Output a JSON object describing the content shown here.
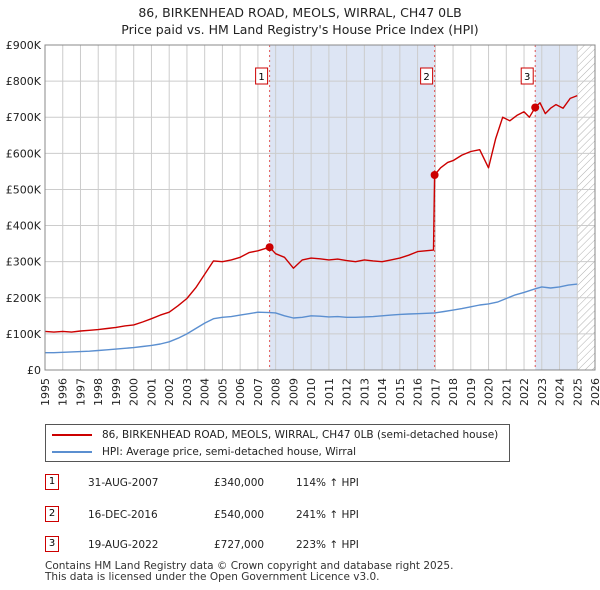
{
  "header": {
    "title_line1": "86, BIRKENHEAD ROAD, MEOLS, WIRRAL, CH47 0LB",
    "title_line2": "Price paid vs. HM Land Registry's House Price Index (HPI)"
  },
  "chart_data": {
    "type": "line",
    "title": "86, BIRKENHEAD ROAD, MEOLS, WIRRAL, CH47 0LB",
    "subtitle": "Price paid vs. HM Land Registry's House Price Index (HPI)",
    "xlabel": "",
    "ylabel": "",
    "xlim": [
      1995,
      2026
    ],
    "ylim": [
      0,
      900000
    ],
    "y_ticks": [
      {
        "value": 0,
        "label": "£0"
      },
      {
        "value": 100000,
        "label": "£100K"
      },
      {
        "value": 200000,
        "label": "£200K"
      },
      {
        "value": 300000,
        "label": "£300K"
      },
      {
        "value": 400000,
        "label": "£400K"
      },
      {
        "value": 500000,
        "label": "£500K"
      },
      {
        "value": 600000,
        "label": "£600K"
      },
      {
        "value": 700000,
        "label": "£700K"
      },
      {
        "value": 800000,
        "label": "£800K"
      },
      {
        "value": 900000,
        "label": "£900K"
      }
    ],
    "x_ticks": [
      "1995",
      "1996",
      "1997",
      "1998",
      "1999",
      "2000",
      "2001",
      "2002",
      "2003",
      "2004",
      "2005",
      "2006",
      "2007",
      "2008",
      "2009",
      "2010",
      "2011",
      "2012",
      "2013",
      "2014",
      "2015",
      "2016",
      "2017",
      "2018",
      "2019",
      "2020",
      "2021",
      "2022",
      "2023",
      "2024",
      "2025",
      "2026"
    ],
    "grid": true,
    "colors": {
      "property": "#cc0000",
      "hpi": "#5b8fd0",
      "shade": "#dde5f4",
      "vline": "#e05555",
      "grid": "#cccccc",
      "hatch": "#b0b0b0"
    },
    "shaded_periods": [
      [
        2007.66,
        2016.96
      ],
      [
        2022.63,
        2025.0
      ]
    ],
    "forecast_start": 2025.0,
    "series": [
      {
        "name": "86, BIRKENHEAD ROAD, MEOLS, WIRRAL, CH47 0LB (semi-detached house)",
        "color": "#cc0000",
        "x": [
          1995.0,
          1995.5,
          1996.0,
          1996.5,
          1997.0,
          1997.5,
          1998.0,
          1998.5,
          1999.0,
          1999.5,
          2000.0,
          2000.5,
          2001.0,
          2001.5,
          2002.0,
          2002.5,
          2003.0,
          2003.5,
          2004.0,
          2004.5,
          2005.0,
          2005.5,
          2006.0,
          2006.5,
          2007.0,
          2007.66,
          2008.0,
          2008.5,
          2009.0,
          2009.5,
          2010.0,
          2010.5,
          2011.0,
          2011.5,
          2012.0,
          2012.5,
          2013.0,
          2013.5,
          2014.0,
          2014.5,
          2015.0,
          2015.5,
          2016.0,
          2016.9,
          2016.96,
          2017.3,
          2017.7,
          2018.0,
          2018.5,
          2019.0,
          2019.5,
          2020.0,
          2020.4,
          2020.8,
          2021.2,
          2021.6,
          2022.0,
          2022.3,
          2022.63,
          2022.9,
          2023.2,
          2023.5,
          2023.8,
          2024.2,
          2024.6,
          2025.0
        ],
        "values": [
          107000,
          105000,
          107000,
          105000,
          108000,
          110000,
          112000,
          115000,
          118000,
          122000,
          125000,
          133000,
          142000,
          152000,
          160000,
          178000,
          198000,
          228000,
          265000,
          302000,
          300000,
          305000,
          312000,
          325000,
          330000,
          340000,
          322000,
          312000,
          282000,
          305000,
          310000,
          308000,
          305000,
          307000,
          303000,
          300000,
          305000,
          302000,
          300000,
          305000,
          310000,
          318000,
          328000,
          332000,
          540000,
          560000,
          575000,
          580000,
          595000,
          605000,
          610000,
          560000,
          640000,
          700000,
          690000,
          705000,
          715000,
          700000,
          727000,
          740000,
          710000,
          725000,
          735000,
          725000,
          752000,
          760000
        ]
      },
      {
        "name": "HPI: Average price, semi-detached house, Wirral",
        "color": "#5b8fd0",
        "x": [
          1995.0,
          1995.5,
          1996.0,
          1996.5,
          1997.0,
          1997.5,
          1998.0,
          1998.5,
          1999.0,
          1999.5,
          2000.0,
          2000.5,
          2001.0,
          2001.5,
          2002.0,
          2002.5,
          2003.0,
          2003.5,
          2004.0,
          2004.5,
          2005.0,
          2005.5,
          2006.0,
          2006.5,
          2007.0,
          2007.66,
          2008.0,
          2008.5,
          2009.0,
          2009.5,
          2010.0,
          2010.5,
          2011.0,
          2011.5,
          2012.0,
          2012.5,
          2013.0,
          2013.5,
          2014.0,
          2014.5,
          2015.0,
          2015.5,
          2016.0,
          2016.5,
          2016.96,
          2017.5,
          2018.0,
          2018.5,
          2019.0,
          2019.5,
          2020.0,
          2020.5,
          2021.0,
          2021.5,
          2022.0,
          2022.63,
          2023.0,
          2023.5,
          2024.0,
          2024.5,
          2025.0
        ],
        "values": [
          48000,
          48000,
          49000,
          50000,
          51000,
          52000,
          54000,
          56000,
          58000,
          60000,
          62000,
          65000,
          68000,
          72000,
          78000,
          88000,
          100000,
          115000,
          130000,
          142000,
          146000,
          148000,
          152000,
          156000,
          160000,
          159000,
          158000,
          150000,
          144000,
          146000,
          150000,
          149000,
          147000,
          148000,
          146000,
          146000,
          147000,
          148000,
          150000,
          152000,
          154000,
          155000,
          156000,
          157000,
          158000,
          162000,
          166000,
          170000,
          175000,
          180000,
          183000,
          188000,
          198000,
          208000,
          215000,
          225000,
          230000,
          227000,
          230000,
          235000,
          238000
        ]
      }
    ],
    "markers": [
      {
        "id": "1",
        "x": 2007.66,
        "y": 340000
      },
      {
        "id": "2",
        "x": 2016.96,
        "y": 540000
      },
      {
        "id": "3",
        "x": 2022.63,
        "y": 727000
      }
    ]
  },
  "legend": {
    "items": [
      {
        "label": "86, BIRKENHEAD ROAD, MEOLS, WIRRAL, CH47 0LB (semi-detached house)",
        "color": "#cc0000"
      },
      {
        "label": "HPI: Average price, semi-detached house, Wirral",
        "color": "#5b8fd0"
      }
    ]
  },
  "transactions": [
    {
      "id": "1",
      "date": "31-AUG-2007",
      "price": "£340,000",
      "hpi": "114% ↑ HPI"
    },
    {
      "id": "2",
      "date": "16-DEC-2016",
      "price": "£540,000",
      "hpi": "241% ↑ HPI"
    },
    {
      "id": "3",
      "date": "19-AUG-2022",
      "price": "£727,000",
      "hpi": "223% ↑ HPI"
    }
  ],
  "footer": {
    "line1": "Contains HM Land Registry data © Crown copyright and database right 2025.",
    "line2": "This data is licensed under the Open Government Licence v3.0."
  }
}
